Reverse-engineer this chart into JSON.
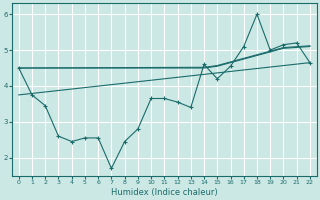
{
  "xlabel": "Humidex (Indice chaleur)",
  "bg_color": "#cce8e4",
  "line_color": "#1a6b6b",
  "grid_color": "#ffffff",
  "xlim": [
    -0.5,
    22.5
  ],
  "ylim": [
    1.5,
    6.3
  ],
  "yticks": [
    2,
    3,
    4,
    5,
    6
  ],
  "xticks": [
    0,
    1,
    2,
    3,
    4,
    5,
    6,
    7,
    8,
    9,
    10,
    11,
    12,
    13,
    14,
    15,
    16,
    17,
    18,
    19,
    20,
    21,
    22
  ],
  "series_zigzag": {
    "x": [
      0,
      1,
      2,
      3,
      4,
      5,
      6,
      7,
      8,
      9,
      10,
      11,
      12,
      13,
      14,
      15,
      16,
      17,
      18,
      19,
      20,
      21,
      22
    ],
    "y": [
      4.5,
      3.75,
      3.45,
      2.6,
      2.45,
      2.55,
      2.55,
      1.7,
      2.45,
      2.8,
      3.65,
      3.65,
      3.55,
      3.4,
      4.6,
      4.2,
      4.55,
      5.1,
      6.0,
      5.0,
      5.15,
      5.2,
      4.65
    ]
  },
  "series_line1": {
    "x": [
      0,
      22
    ],
    "y": [
      3.75,
      4.65
    ]
  },
  "series_line2": {
    "x": [
      0,
      14,
      15,
      19,
      20,
      22
    ],
    "y": [
      4.5,
      4.5,
      4.55,
      4.95,
      5.05,
      5.1
    ]
  },
  "series_line3": {
    "x": [
      0,
      14,
      15,
      19,
      20,
      22
    ],
    "y": [
      4.5,
      4.52,
      4.57,
      4.97,
      5.07,
      5.12
    ]
  }
}
